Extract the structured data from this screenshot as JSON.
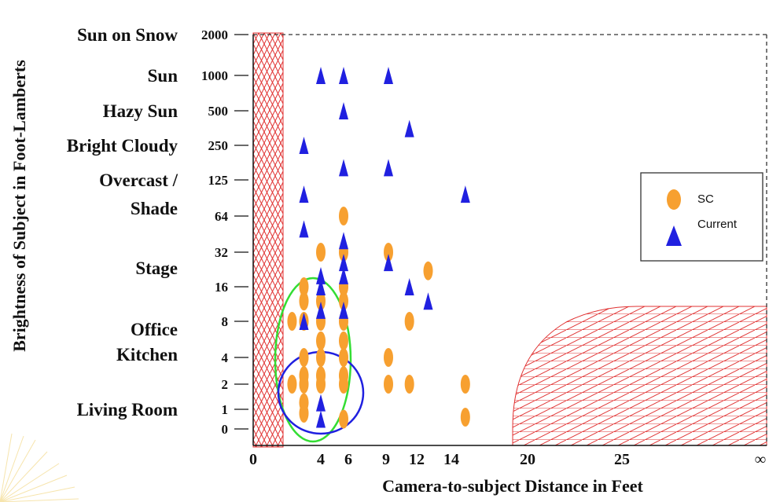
{
  "chart_data": {
    "type": "scatter",
    "title": "",
    "xlabel": "Camera-to-subject Distance in Feet",
    "ylabel": "Brightness of Subject in Foot-Lamberts",
    "x_ticks": [
      "0",
      "4",
      "6",
      "9",
      "12",
      "14",
      "20",
      "25",
      "∞"
    ],
    "y_ticks": [
      "2000",
      "1000",
      "500",
      "250",
      "125",
      "64",
      "32",
      "16",
      "8",
      "4",
      "2",
      "1",
      "0"
    ],
    "categories": [
      {
        "label": "Sun on Snow",
        "value": "2000"
      },
      {
        "label": "Sun",
        "value": "1000"
      },
      {
        "label": "Hazy Sun",
        "value": "500"
      },
      {
        "label": "Bright Cloudy",
        "value": "250"
      },
      {
        "label": "Overcast /",
        "value": "125"
      },
      {
        "label": "Shade",
        "value": "64"
      },
      {
        "label": "Stage",
        "value": "32"
      },
      {
        "label": "Office",
        "value": "8"
      },
      {
        "label": "Kitchen",
        "value": "4"
      },
      {
        "label": "Living Room",
        "value": "1"
      }
    ],
    "legend": {
      "position": "right",
      "entries": [
        "SC",
        "Current"
      ]
    },
    "colors": {
      "sc": "#f7a030",
      "current": "#2020e0",
      "hatch": "#e03030",
      "green_circle": "#33dd33",
      "blue_circle": "#2020e0"
    },
    "series": [
      {
        "name": "SC",
        "points": [
          {
            "x": 6,
            "y": 64
          },
          {
            "x": 4,
            "y": 32
          },
          {
            "x": 6,
            "y": 32
          },
          {
            "x": 9,
            "y": 32
          },
          {
            "x": 12.5,
            "y": 22
          },
          {
            "x": 3,
            "y": 16
          },
          {
            "x": 6,
            "y": 16
          },
          {
            "x": 3,
            "y": 12
          },
          {
            "x": 4,
            "y": 12
          },
          {
            "x": 6,
            "y": 12
          },
          {
            "x": 2.3,
            "y": 8
          },
          {
            "x": 3,
            "y": 8
          },
          {
            "x": 4,
            "y": 8
          },
          {
            "x": 6,
            "y": 8
          },
          {
            "x": 11,
            "y": 8
          },
          {
            "x": 4,
            "y": 5.5
          },
          {
            "x": 6,
            "y": 5.5
          },
          {
            "x": 3,
            "y": 4
          },
          {
            "x": 4,
            "y": 4
          },
          {
            "x": 6,
            "y": 4
          },
          {
            "x": 9,
            "y": 4
          },
          {
            "x": 3,
            "y": 2.5
          },
          {
            "x": 4,
            "y": 2.5
          },
          {
            "x": 6,
            "y": 2.5
          },
          {
            "x": 2.3,
            "y": 2
          },
          {
            "x": 3,
            "y": 2
          },
          {
            "x": 4,
            "y": 2
          },
          {
            "x": 6,
            "y": 2
          },
          {
            "x": 9,
            "y": 2
          },
          {
            "x": 11,
            "y": 2
          },
          {
            "x": 15,
            "y": 2
          },
          {
            "x": 3,
            "y": 1.2
          },
          {
            "x": 15,
            "y": 0.6
          },
          {
            "x": 6,
            "y": 0.5
          },
          {
            "x": 3,
            "y": 0.8
          }
        ]
      },
      {
        "name": "Current",
        "points": [
          {
            "x": 4,
            "y": 1000
          },
          {
            "x": 6,
            "y": 1000
          },
          {
            "x": 9,
            "y": 1000
          },
          {
            "x": 6,
            "y": 500
          },
          {
            "x": 11,
            "y": 350
          },
          {
            "x": 3,
            "y": 250
          },
          {
            "x": 6,
            "y": 160
          },
          {
            "x": 9,
            "y": 160
          },
          {
            "x": 3,
            "y": 96
          },
          {
            "x": 15,
            "y": 96
          },
          {
            "x": 3,
            "y": 50
          },
          {
            "x": 6,
            "y": 40
          },
          {
            "x": 6,
            "y": 26
          },
          {
            "x": 9,
            "y": 26
          },
          {
            "x": 4,
            "y": 20
          },
          {
            "x": 6,
            "y": 20
          },
          {
            "x": 4,
            "y": 16
          },
          {
            "x": 11,
            "y": 16
          },
          {
            "x": 12.5,
            "y": 12
          },
          {
            "x": 4,
            "y": 10
          },
          {
            "x": 6,
            "y": 10
          },
          {
            "x": 3,
            "y": 8
          },
          {
            "x": 4,
            "y": 1.2
          },
          {
            "x": 4,
            "y": 0.5
          }
        ]
      }
    ]
  }
}
